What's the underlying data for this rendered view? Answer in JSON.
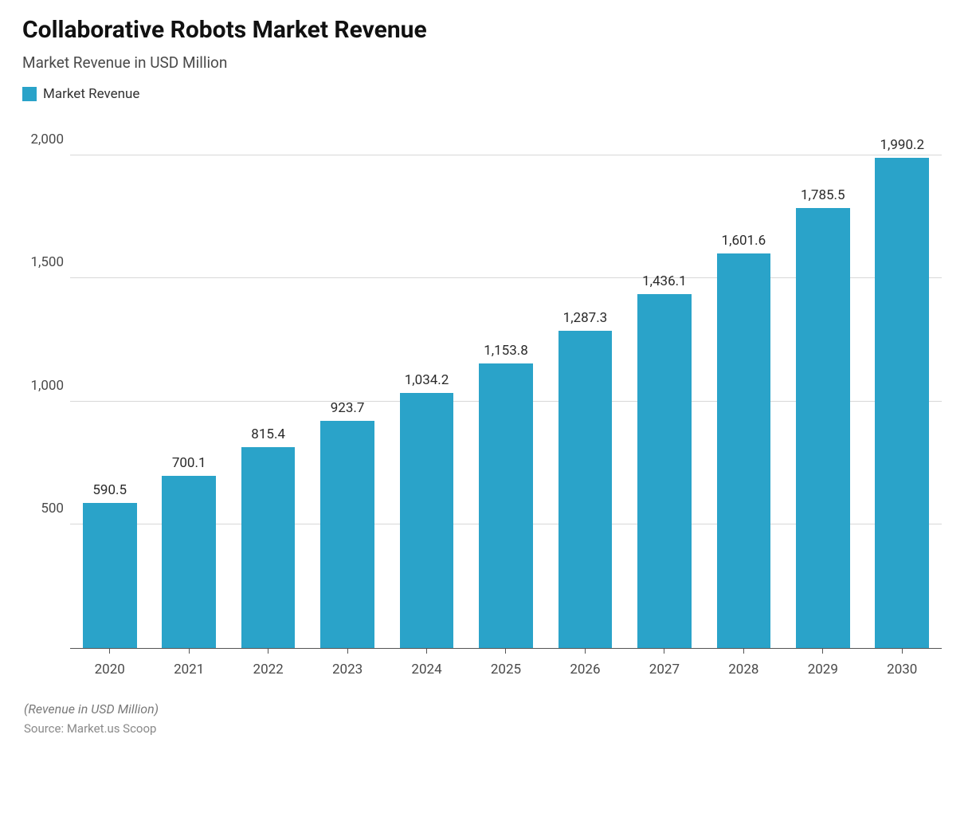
{
  "chart": {
    "type": "bar",
    "title": "Collaborative Robots Market Revenue",
    "subtitle": "Market Revenue in USD Million",
    "legend_label": "Market Revenue",
    "bar_color": "#2aa3c9",
    "background_color": "#ffffff",
    "grid_color": "#d8d8d8",
    "axis_color": "#555555",
    "text_color": "#4a4a4a",
    "title_color": "#111111",
    "title_fontsize": 30,
    "subtitle_fontsize": 19,
    "label_fontsize": 17,
    "bar_width_pct": 68,
    "ylim": [
      0,
      2100
    ],
    "yticks": [
      500,
      1000,
      1500,
      2000
    ],
    "ytick_labels": [
      "500",
      "1,000",
      "1,500",
      "2,000"
    ],
    "categories": [
      "2020",
      "2021",
      "2022",
      "2023",
      "2024",
      "2025",
      "2026",
      "2027",
      "2028",
      "2029",
      "2030"
    ],
    "values": [
      590.5,
      700.1,
      815.4,
      923.7,
      1034.2,
      1153.8,
      1287.3,
      1436.1,
      1601.6,
      1785.5,
      1990.2
    ],
    "value_labels": [
      "590.5",
      "700.1",
      "815.4",
      "923.7",
      "1,034.2",
      "1,153.8",
      "1,287.3",
      "1,436.1",
      "1,601.6",
      "1,785.5",
      "1,990.2"
    ],
    "footer_note": "(Revenue in USD Million)",
    "footer_source": "Source: Market.us Scoop"
  }
}
